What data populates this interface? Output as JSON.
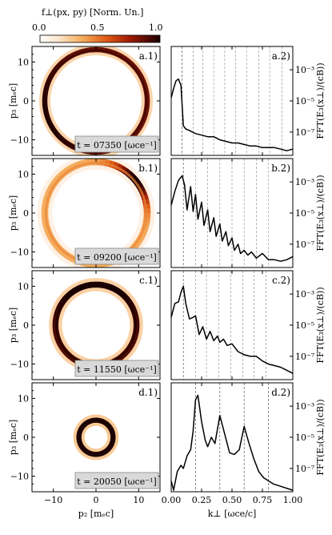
{
  "colorbar": {
    "label": "f⊥(px, py) [Norm. Un.]",
    "ticks": [
      "0.0",
      "0.5",
      "1.0"
    ],
    "colormap": [
      "#ffffff",
      "#fde3c8",
      "#f2a24a",
      "#d0470f",
      "#8b0f07",
      "#1a0000"
    ]
  },
  "left_axes": {
    "xlabel": "p₂ [mₑc]",
    "ylabel": "p₃ [mₑc]",
    "xticks": [
      "−10",
      "0",
      "10"
    ],
    "yticks": [
      "10",
      "0",
      "−10"
    ]
  },
  "right_axes": {
    "xlabel": "k⊥ [ωce/c]",
    "ylabel": "FFT(E₃(x⊥)/(cB))",
    "xticks": [
      "0.00",
      "0.25",
      "0.50",
      "0.75",
      "1.00"
    ],
    "yticks": [
      "10⁻³",
      "10⁻⁵",
      "10⁻⁷"
    ]
  },
  "panels": [
    {
      "left_tag": "a.1)",
      "right_tag": "a.2)",
      "time": "t = 07350 [ωce⁻¹]"
    },
    {
      "left_tag": "b.1)",
      "right_tag": "b.2)",
      "time": "t = 09200 [ωce⁻¹]"
    },
    {
      "left_tag": "c.1)",
      "right_tag": "c.2)",
      "time": "t = 11550 [ωce⁻¹]"
    },
    {
      "left_tag": "d.1)",
      "right_tag": "d.2)",
      "time": "t = 20050 [ωce⁻¹]"
    }
  ],
  "chart_data": [
    {
      "type": "heatmap",
      "description_rows": [
        "a",
        "b",
        "c",
        "d"
      ],
      "xlim": [
        -15,
        15
      ],
      "ylim": [
        -14,
        14
      ],
      "rings": [
        {
          "radius": 12.0,
          "width": 1.2,
          "intensity": 0.85,
          "hotspot_angle_deg": 200
        },
        {
          "radius": 12.0,
          "width": 1.6,
          "intensity": 0.35,
          "hotspot_angle_deg": 40
        },
        {
          "radius": 9.5,
          "width": 1.4,
          "intensity": 0.9,
          "hotspot_angle_deg": 90
        },
        {
          "radius": 4.0,
          "width": 1.2,
          "intensity": 1.0,
          "hotspot_angle_deg": 90
        }
      ]
    },
    {
      "type": "line",
      "xlabel": "k⊥ [ωce/c]",
      "ylabel": "FFT(E₃(x⊥)/(cB))",
      "xlim": [
        0,
        1
      ],
      "ylim_log10": [
        -8.5,
        -1.5
      ],
      "series": [
        {
          "x": [
            0.0,
            0.02,
            0.04,
            0.06,
            0.08,
            0.1,
            0.12,
            0.15,
            0.2,
            0.25,
            0.3,
            0.35,
            0.4,
            0.45,
            0.5,
            0.55,
            0.6,
            0.65,
            0.7,
            0.75,
            0.8,
            0.85,
            0.9,
            0.95,
            1.0
          ],
          "log10y": [
            -4.8,
            -4.2,
            -3.7,
            -3.6,
            -4.0,
            -6.6,
            -6.8,
            -6.9,
            -7.1,
            -7.2,
            -7.3,
            -7.3,
            -7.5,
            -7.6,
            -7.7,
            -7.7,
            -7.8,
            -7.9,
            -7.9,
            -8.0,
            -8.0,
            -8.0,
            -8.1,
            -8.2,
            -8.1
          ]
        },
        {
          "x": [
            0.0,
            0.03,
            0.06,
            0.09,
            0.11,
            0.13,
            0.16,
            0.18,
            0.2,
            0.22,
            0.25,
            0.27,
            0.3,
            0.32,
            0.35,
            0.37,
            0.4,
            0.42,
            0.45,
            0.47,
            0.5,
            0.52,
            0.55,
            0.57,
            0.6,
            0.63,
            0.66,
            0.7,
            0.75,
            0.8,
            0.85,
            0.9,
            0.95,
            1.0
          ],
          "log10y": [
            -4.5,
            -3.6,
            -2.9,
            -2.6,
            -3.2,
            -4.8,
            -3.3,
            -4.9,
            -3.8,
            -5.4,
            -4.3,
            -5.8,
            -4.8,
            -6.2,
            -5.3,
            -6.5,
            -5.7,
            -6.8,
            -6.2,
            -7.1,
            -6.6,
            -7.4,
            -7.0,
            -7.6,
            -7.4,
            -7.7,
            -7.5,
            -7.9,
            -7.6,
            -8.0,
            -8.0,
            -8.1,
            -8.0,
            -7.8
          ]
        },
        {
          "x": [
            0.0,
            0.03,
            0.06,
            0.08,
            0.1,
            0.12,
            0.15,
            0.18,
            0.2,
            0.23,
            0.26,
            0.29,
            0.32,
            0.35,
            0.38,
            0.4,
            0.43,
            0.46,
            0.5,
            0.55,
            0.6,
            0.65,
            0.7,
            0.75,
            0.8,
            0.85,
            0.9,
            0.95,
            1.0
          ],
          "log10y": [
            -4.5,
            -3.6,
            -3.5,
            -2.9,
            -2.5,
            -3.6,
            -4.6,
            -4.5,
            -4.4,
            -5.6,
            -5.1,
            -5.9,
            -5.4,
            -6.0,
            -5.7,
            -6.1,
            -5.9,
            -6.3,
            -6.2,
            -6.7,
            -6.9,
            -7.0,
            -7.0,
            -7.3,
            -7.5,
            -7.6,
            -7.7,
            -7.9,
            -8.1
          ]
        },
        {
          "x": [
            0.0,
            0.02,
            0.05,
            0.08,
            0.1,
            0.13,
            0.16,
            0.18,
            0.2,
            0.22,
            0.25,
            0.28,
            0.3,
            0.33,
            0.36,
            0.4,
            0.44,
            0.48,
            0.52,
            0.56,
            0.6,
            0.64,
            0.68,
            0.72,
            0.76,
            0.8,
            0.84,
            0.88,
            0.92,
            0.96,
            1.0
          ],
          "log10y": [
            -7.8,
            -8.4,
            -7.2,
            -6.8,
            -7.0,
            -6.2,
            -5.8,
            -4.6,
            -2.6,
            -2.3,
            -4.0,
            -5.2,
            -5.6,
            -5.0,
            -5.4,
            -3.6,
            -4.8,
            -6.0,
            -6.1,
            -5.8,
            -4.3,
            -5.4,
            -6.4,
            -7.2,
            -7.6,
            -7.8,
            -8.0,
            -8.1,
            -8.2,
            -8.3,
            -8.4
          ]
        }
      ],
      "dashed_lines_x": [
        [
          0.09,
          0.18,
          0.26,
          0.35,
          0.44,
          0.53,
          0.62,
          0.72,
          0.81,
          0.91
        ],
        [
          0.1,
          0.2,
          0.3,
          0.4,
          0.5,
          0.6,
          0.7,
          0.8
        ],
        [
          0.1,
          0.2,
          0.29,
          0.39,
          0.49,
          0.59,
          0.68,
          0.78
        ],
        [
          0.2,
          0.4,
          0.6,
          0.8
        ]
      ]
    }
  ]
}
